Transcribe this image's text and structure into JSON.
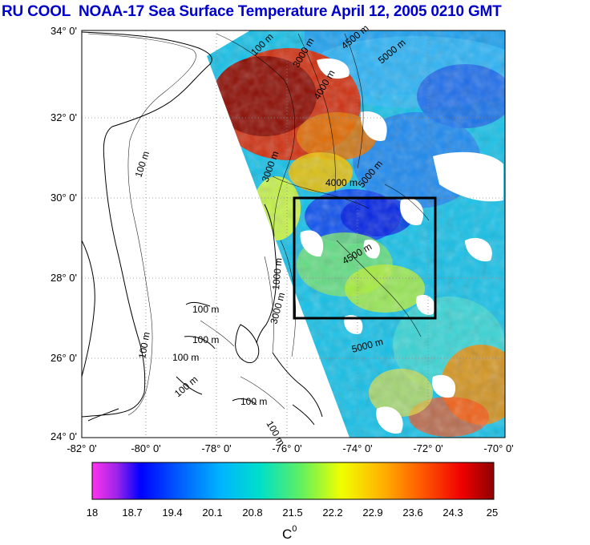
{
  "title": "RU COOL  NOAA-17 Sea Surface Temperature April 12, 2005 0210 GMT",
  "map": {
    "lat_labels": [
      "34° 0'",
      "32° 0'",
      "30° 0'",
      "28° 0'",
      "26° 0'",
      "24° 0'"
    ],
    "lon_labels": [
      "-82° 0'",
      "-80° 0'",
      "-78° 0'",
      "-76° 0'",
      "-74° 0'",
      "-72° 0'",
      "-70° 0'"
    ],
    "contour_labels": [
      {
        "text": "100 m"
      },
      {
        "text": "100 m"
      },
      {
        "text": "100 m"
      },
      {
        "text": "100 m"
      },
      {
        "text": "100 m"
      },
      {
        "text": "100 m"
      },
      {
        "text": "100 m"
      },
      {
        "text": "100 m"
      },
      {
        "text": "100 m"
      },
      {
        "text": "3000 m"
      },
      {
        "text": "5000 m"
      },
      {
        "text": "4000 m"
      },
      {
        "text": "4000 m"
      },
      {
        "text": "4500 m"
      },
      {
        "text": "5000 m"
      },
      {
        "text": "3000 m"
      },
      {
        "text": "1000 m"
      },
      {
        "text": "3000 m"
      },
      {
        "text": "5000 m"
      },
      {
        "text": "4500 m"
      }
    ],
    "study_box": {
      "lon_min": -76,
      "lon_max": -72,
      "lat_min": 27,
      "lat_max": 30
    }
  },
  "colorbar": {
    "ticks": [
      "18",
      "18.7",
      "19.4",
      "20.1",
      "20.8",
      "21.5",
      "22.2",
      "22.9",
      "23.6",
      "24.3",
      "25"
    ],
    "unit": "C",
    "unit_sup": "0",
    "min": 18,
    "max": 25
  },
  "colors": {
    "title": "#0000cc",
    "box": "#000000",
    "no_data": "#ffffff"
  }
}
